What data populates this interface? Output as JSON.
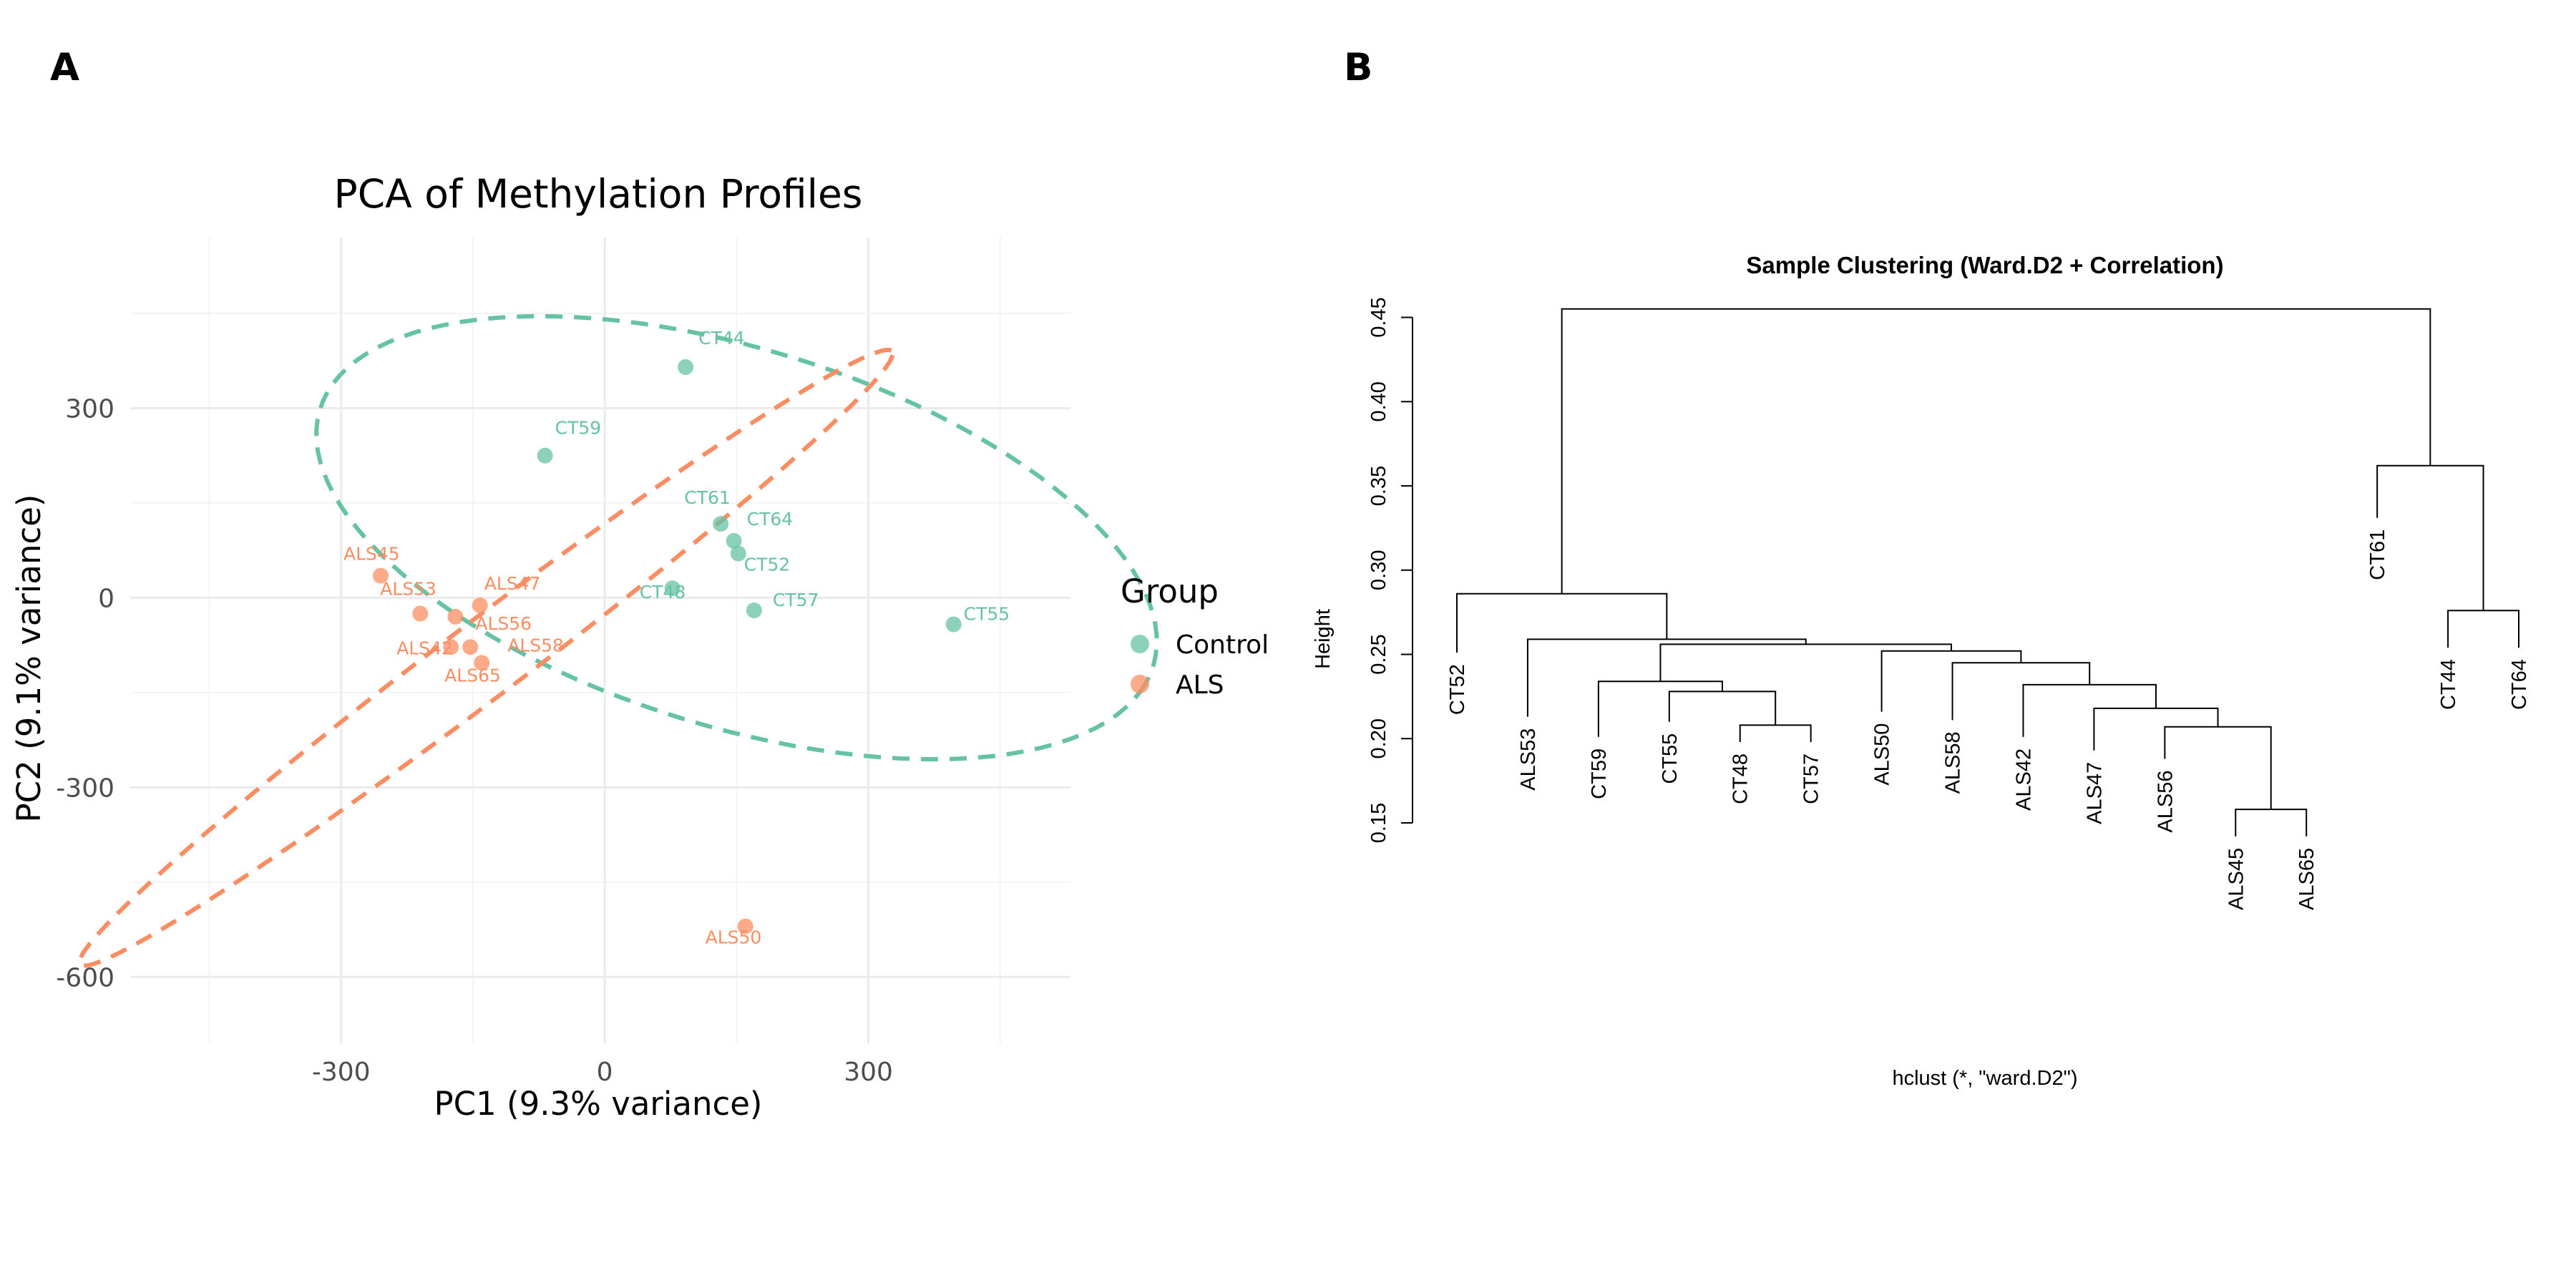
{
  "panels": {
    "a": "A",
    "b": "B"
  },
  "colors": {
    "control": "#66c2a5",
    "als": "#fc8d62"
  },
  "chart_data": [
    {
      "type": "scatter",
      "title": "PCA of Methylation Profiles",
      "xlabel": "PC1 (9.3% variance)",
      "ylabel": "PC2 (9.1% variance)",
      "xlim": [
        -540,
        530
      ],
      "ylim": [
        -705,
        570
      ],
      "xticks": [
        -300,
        0,
        300
      ],
      "yticks": [
        300,
        0,
        -300,
        -600
      ],
      "grid": true,
      "legend": {
        "title": "Group",
        "position": "right",
        "entries": [
          "Control",
          "ALS"
        ]
      },
      "series": [
        {
          "name": "Control",
          "color": "#66c2a5",
          "points": [
            {
              "label": "CT44",
              "x": 92,
              "y": 365
            },
            {
              "label": "CT59",
              "x": -68,
              "y": 225
            },
            {
              "label": "CT61",
              "x": 132,
              "y": 117
            },
            {
              "label": "CT64",
              "x": 147,
              "y": 90
            },
            {
              "label": "CT52",
              "x": 152,
              "y": 70
            },
            {
              "label": "CT48",
              "x": 77,
              "y": 15
            },
            {
              "label": "CT57",
              "x": 170,
              "y": -20
            },
            {
              "label": "CT55",
              "x": 397,
              "y": -42
            }
          ],
          "ellipse": {
            "cx": 150,
            "cy": 95,
            "rx": 520,
            "ry": 285,
            "angle_deg": -28
          }
        },
        {
          "name": "ALS",
          "color": "#fc8d62",
          "points": [
            {
              "label": "ALS45",
              "x": -255,
              "y": 35
            },
            {
              "label": "ALS53",
              "x": -210,
              "y": -25
            },
            {
              "label": "ALS47",
              "x": -142,
              "y": -12
            },
            {
              "label": "ALS56",
              "x": -170,
              "y": -30
            },
            {
              "label": "ALS42",
              "x": -175,
              "y": -78
            },
            {
              "label": "ALS58",
              "x": -153,
              "y": -78
            },
            {
              "label": "ALS65",
              "x": -140,
              "y": -103
            },
            {
              "label": "ALS50",
              "x": 160,
              "y": -520
            }
          ],
          "ellipse": {
            "cx": -135,
            "cy": -95,
            "rx": 670,
            "ry": 52,
            "angle_deg": 46.5
          }
        }
      ]
    },
    {
      "type": "dendrogram",
      "title": "Sample Clustering (Ward.D2 + Correlation)",
      "ylabel": "Height",
      "xlabel": "hclust (*, \"ward.D2\")",
      "ylim": [
        0.15,
        0.46
      ],
      "yticks": [
        "0.15",
        "0.20",
        "0.25",
        "0.30",
        "0.35",
        "0.40",
        "0.45"
      ],
      "leaves": [
        {
          "label": "CT52",
          "height": 0.251
        },
        {
          "label": "ALS53",
          "height": 0.213
        },
        {
          "label": "CT59",
          "height": 0.201
        },
        {
          "label": "CT55",
          "height": 0.21
        },
        {
          "label": "CT48",
          "height": 0.198
        },
        {
          "label": "CT57",
          "height": 0.198
        },
        {
          "label": "ALS50",
          "height": 0.216
        },
        {
          "label": "ALS58",
          "height": 0.211
        },
        {
          "label": "ALS42",
          "height": 0.201
        },
        {
          "label": "ALS47",
          "height": 0.193
        },
        {
          "label": "ALS56",
          "height": 0.188
        },
        {
          "label": "ALS45",
          "height": 0.142
        },
        {
          "label": "ALS65",
          "height": 0.142
        },
        {
          "label": "CT61",
          "height": 0.331
        },
        {
          "label": "CT44",
          "height": 0.254
        },
        {
          "label": "CT64",
          "height": 0.254
        }
      ],
      "merges": [
        {
          "left": "L11",
          "right": "L12",
          "height": 0.158
        },
        {
          "left": "L10",
          "right": "M0",
          "height": 0.207
        },
        {
          "left": "L4",
          "right": "L5",
          "height": 0.208
        },
        {
          "left": "L9",
          "right": "M1",
          "height": 0.218
        },
        {
          "left": "L3",
          "right": "M2",
          "height": 0.228
        },
        {
          "left": "L8",
          "right": "M3",
          "height": 0.232
        },
        {
          "left": "L2",
          "right": "M4",
          "height": 0.234
        },
        {
          "left": "L7",
          "right": "M5",
          "height": 0.245
        },
        {
          "left": "L6",
          "right": "M7",
          "height": 0.252
        },
        {
          "left": "M6",
          "right": "M8",
          "height": 0.256
        },
        {
          "left": "L1",
          "right": "M9",
          "height": 0.259
        },
        {
          "left": "L0",
          "right": "M10",
          "height": 0.286
        },
        {
          "left": "L14",
          "right": "L15",
          "height": 0.276
        },
        {
          "left": "L13",
          "right": "M12",
          "height": 0.362
        },
        {
          "left": "M11",
          "right": "M13",
          "height": 0.455
        }
      ]
    }
  ]
}
